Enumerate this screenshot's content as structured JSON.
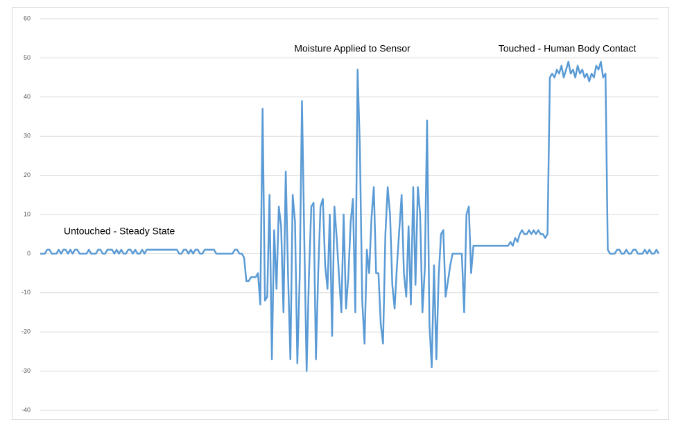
{
  "chart_data": {
    "type": "line",
    "annotations": [
      "Untouched - Steady State",
      "Moisture Applied to Sensor",
      "Touched - Human Body Contact"
    ],
    "series": [
      {
        "color": "#5b9bd5",
        "values": [
          0,
          0,
          0,
          1,
          1,
          0,
          0,
          0,
          1,
          0,
          1,
          1,
          0,
          1,
          0,
          1,
          1,
          0,
          0,
          0,
          0,
          1,
          0,
          0,
          0,
          1,
          1,
          0,
          0,
          1,
          1,
          1,
          0,
          1,
          0,
          1,
          0,
          0,
          1,
          1,
          0,
          1,
          0,
          0,
          1,
          0,
          1,
          1,
          1,
          1,
          1,
          1,
          1,
          1,
          1,
          1,
          1,
          1,
          1,
          1,
          0,
          0,
          1,
          1,
          0,
          1,
          0,
          1,
          1,
          0,
          0,
          1,
          1,
          1,
          1,
          1,
          0,
          0,
          0,
          0,
          0,
          0,
          0,
          0,
          1,
          1,
          0,
          0,
          -1,
          -7,
          -7,
          -6,
          -6,
          -6,
          -5,
          -13,
          37,
          -12,
          -11,
          15,
          -27,
          6,
          -9,
          12,
          7,
          -15,
          21,
          -6,
          -27,
          15,
          8,
          -28,
          -6,
          39,
          3,
          -30,
          -6,
          12,
          13,
          -27,
          -5,
          12,
          14,
          -3,
          -9,
          10,
          -21,
          12,
          4,
          -6,
          -15,
          10,
          -14,
          -6,
          8,
          14,
          -15,
          47,
          27,
          -12,
          -23,
          1,
          -5,
          9,
          17,
          -5,
          -5,
          -18,
          -23,
          5,
          17,
          10,
          -8,
          -14,
          -3,
          6,
          15,
          -5,
          -11,
          7,
          -13,
          17,
          -8,
          17,
          10,
          -15,
          -4,
          34,
          -18,
          -29,
          -3,
          -27,
          -6,
          5,
          6,
          -11,
          -7,
          -3,
          0,
          0,
          0,
          0,
          0,
          -15,
          10,
          12,
          -5,
          2,
          2,
          2,
          2,
          2,
          2,
          2,
          2,
          2,
          2,
          2,
          2,
          2,
          2,
          2,
          2,
          3,
          2,
          4,
          3,
          5,
          6,
          5,
          5,
          6,
          5,
          6,
          5,
          6,
          5,
          5,
          4,
          5,
          45,
          46,
          45,
          47,
          46,
          48,
          45,
          47,
          49,
          46,
          47,
          45,
          48,
          46,
          47,
          45,
          46,
          44,
          46,
          45,
          48,
          47,
          49,
          45,
          46,
          1,
          0,
          0,
          0,
          1,
          1,
          0,
          0,
          1,
          0,
          0,
          1,
          1,
          0,
          0,
          0,
          1,
          0,
          1,
          0,
          0,
          1,
          0
        ]
      }
    ],
    "ylim": [
      -40,
      60
    ],
    "yticks": [
      -40,
      -30,
      -20,
      -10,
      0,
      10,
      20,
      30,
      40,
      50,
      60
    ],
    "grid": true
  }
}
